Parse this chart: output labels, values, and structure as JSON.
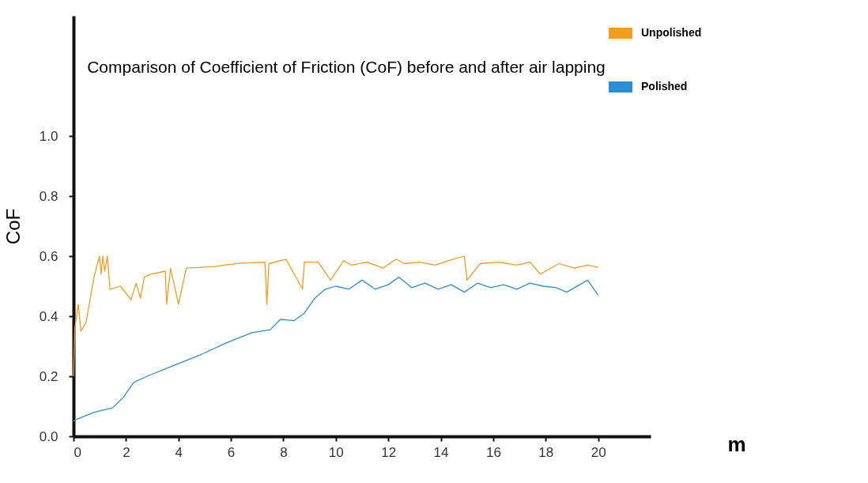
{
  "chart_data": {
    "type": "line",
    "title": "Comparison of Coefficient of Friction (CoF) before and after air lapping",
    "xlabel": "m",
    "ylabel": "CoF",
    "xlim": [
      0,
      22
    ],
    "ylim": [
      0,
      1.4
    ],
    "xticks": [
      0,
      2,
      4,
      6,
      8,
      10,
      12,
      14,
      16,
      18,
      20
    ],
    "yticks": [
      {
        "value": 0,
        "label": "0.0"
      },
      0.2,
      0.4,
      0.6,
      0.8,
      {
        "value": 1,
        "label": "1.0"
      }
    ],
    "legend": "right",
    "grid": false,
    "line_style": "solid",
    "series": [
      {
        "name": "Unpolished",
        "color": "#f39c1e",
        "x": [
          0,
          0.05,
          0.18,
          0.28,
          0.48,
          0.78,
          0.99,
          1.05,
          1.12,
          1.19,
          1.29,
          1.39,
          1.79,
          2.19,
          2.39,
          2.55,
          2.7,
          2.95,
          3.5,
          3.55,
          3.7,
          4.0,
          4.3,
          5.3,
          6.3,
          7.3,
          7.37,
          7.45,
          8.1,
          8.73,
          8.8,
          9.33,
          9.8,
          10.3,
          10.6,
          11.2,
          11.8,
          12.3,
          12.6,
          13.2,
          13.8,
          14.3,
          14.9,
          15.0,
          15.5,
          16.2,
          16.9,
          17.4,
          17.8,
          18.5,
          19.1,
          19.6,
          20.0
        ],
        "values": [
          0.2,
          0.36,
          0.44,
          0.35,
          0.38,
          0.53,
          0.6,
          0.54,
          0.6,
          0.55,
          0.6,
          0.49,
          0.5,
          0.455,
          0.51,
          0.46,
          0.53,
          0.54,
          0.55,
          0.44,
          0.56,
          0.44,
          0.56,
          0.565,
          0.576,
          0.58,
          0.44,
          0.575,
          0.59,
          0.49,
          0.58,
          0.58,
          0.52,
          0.585,
          0.57,
          0.58,
          0.56,
          0.59,
          0.575,
          0.58,
          0.57,
          0.585,
          0.6,
          0.52,
          0.575,
          0.58,
          0.57,
          0.58,
          0.54,
          0.575,
          0.56,
          0.57,
          0.563
        ]
      },
      {
        "name": "Polished",
        "color": "#2b8fd6",
        "x": [
          0,
          0.07,
          0.78,
          1.49,
          1.9,
          2.3,
          2.8,
          3.8,
          4.8,
          5.8,
          6.8,
          7.5,
          7.9,
          8.4,
          8.8,
          9.2,
          9.6,
          10.0,
          10.5,
          11.0,
          11.5,
          12.0,
          12.4,
          12.9,
          13.4,
          13.9,
          14.4,
          14.9,
          15.4,
          15.9,
          16.4,
          16.9,
          17.4,
          17.9,
          18.4,
          18.8,
          19.3,
          19.6,
          20.0
        ],
        "values": [
          0.05,
          0.055,
          0.08,
          0.095,
          0.13,
          0.18,
          0.2,
          0.235,
          0.27,
          0.31,
          0.345,
          0.355,
          0.39,
          0.385,
          0.41,
          0.46,
          0.49,
          0.5,
          0.49,
          0.52,
          0.49,
          0.505,
          0.53,
          0.495,
          0.51,
          0.49,
          0.505,
          0.48,
          0.51,
          0.495,
          0.505,
          0.49,
          0.51,
          0.5,
          0.495,
          0.48,
          0.505,
          0.52,
          0.47
        ]
      }
    ]
  }
}
